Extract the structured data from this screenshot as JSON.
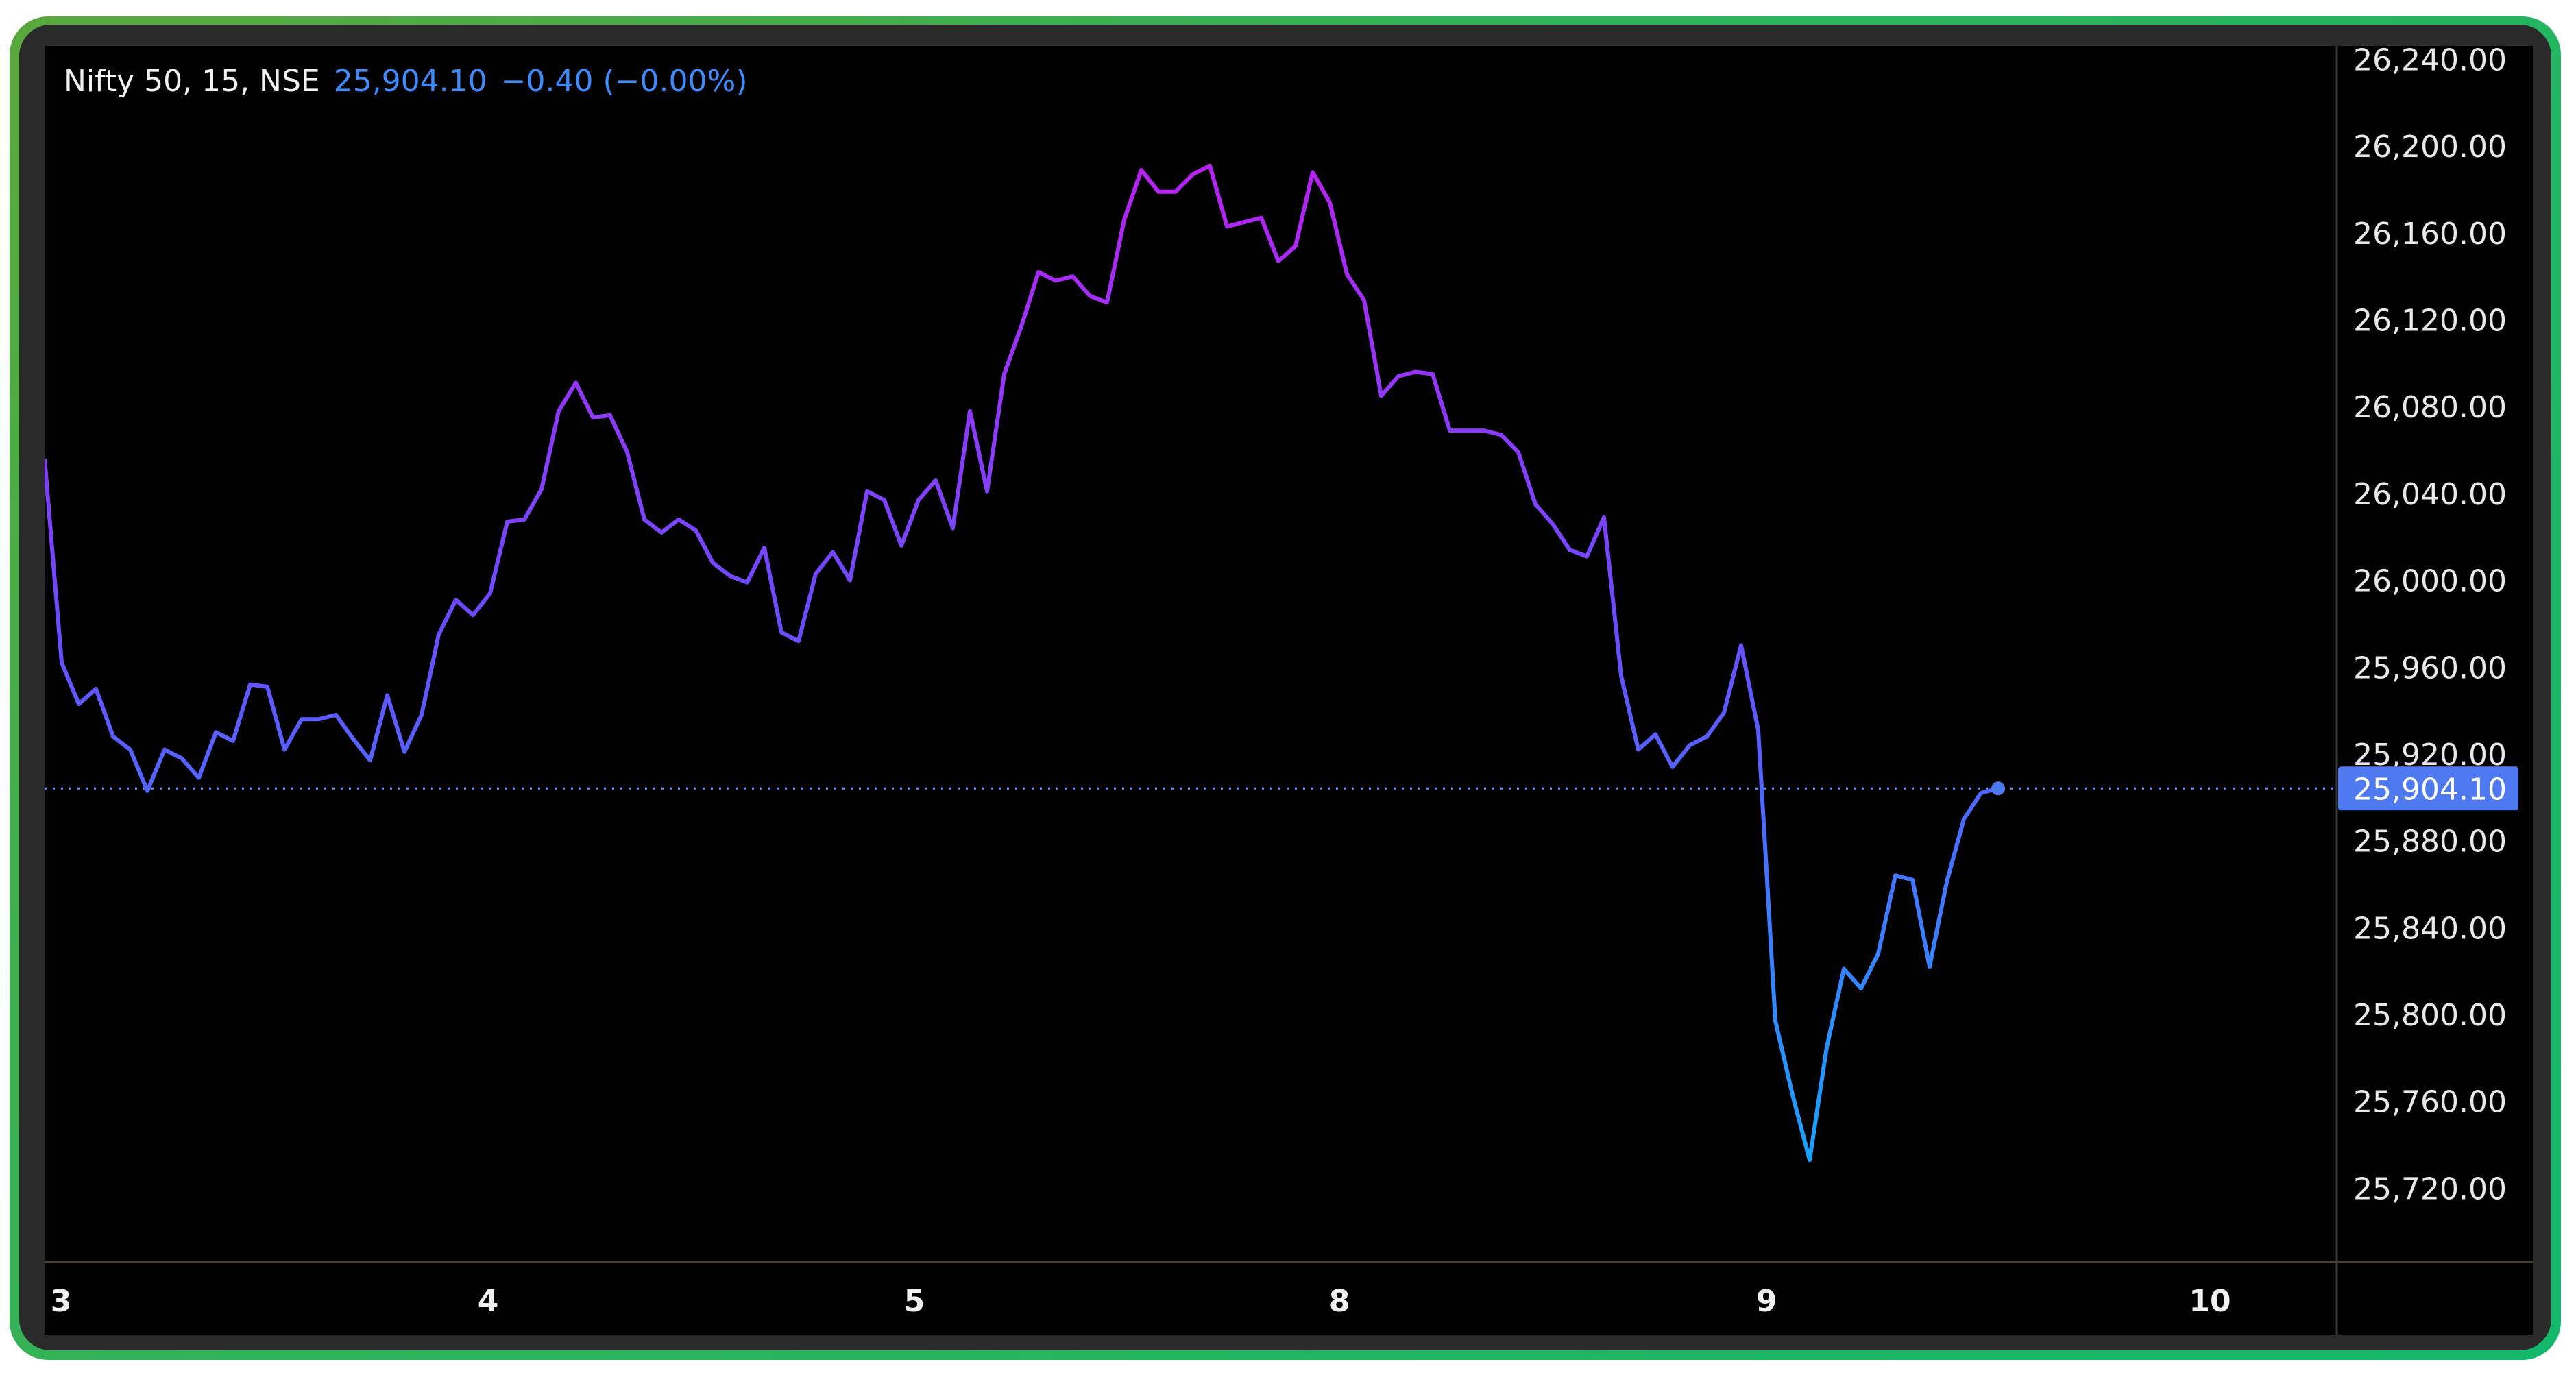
{
  "header": {
    "symbol": "Nifty 50, 15, NSE",
    "last": "25,904.10",
    "change": "−0.40 (−0.00%)"
  },
  "colors": {
    "line_high": "#c21cf2",
    "line_mid": "#6a4cff",
    "line_low": "#1aa0ff",
    "last_price_badge": "#4f79f0",
    "header_value": "#3b8cff",
    "frame_border": "#1dbb6b"
  },
  "chart_data": {
    "type": "line",
    "title": "Nifty 50, 15, NSE",
    "xlabel": "",
    "ylabel": "",
    "ylim": [
      25700,
      26250
    ],
    "grid": false,
    "y_ticks": [
      "26,240.00",
      "26,200.00",
      "26,160.00",
      "26,120.00",
      "26,080.00",
      "26,040.00",
      "26,000.00",
      "25,960.00",
      "25,920.00",
      "25,880.00",
      "25,840.00",
      "25,800.00",
      "25,760.00",
      "25,720.00"
    ],
    "y_tick_values": [
      26240,
      26200,
      26160,
      26120,
      26080,
      26040,
      26000,
      25960,
      25920,
      25880,
      25840,
      25800,
      25760,
      25720
    ],
    "x_ticks": [
      "3",
      "4",
      "5",
      "8",
      "9",
      "10"
    ],
    "last_price_label": "25,904.10",
    "last_price": 25904.1,
    "values": [
      26056,
      25962,
      25943,
      25950,
      25928,
      25922,
      25903,
      25922,
      25918,
      25909,
      25930,
      25926,
      25952,
      25951,
      25922,
      25936,
      25936,
      25938,
      25927,
      25917,
      25947,
      25921,
      25938,
      25975,
      25991,
      25984,
      25994,
      26027,
      26028,
      26042,
      26078,
      26091,
      26075,
      26076,
      26059,
      26028,
      26022,
      26028,
      26023,
      26008,
      26002,
      25999,
      26015,
      25976,
      25972,
      26003,
      26013,
      26000,
      26041,
      26037,
      26016,
      26037,
      26046,
      26024,
      26078,
      26041,
      26095,
      26117,
      26142,
      26138,
      26140,
      26131,
      26128,
      26166,
      26189,
      26179,
      26179,
      26187,
      26191,
      26163,
      26165,
      26167,
      26147,
      26154,
      26188,
      26174,
      26141,
      26129,
      26085,
      26094,
      26096,
      26095,
      26069,
      26069,
      26069,
      26067,
      26059,
      26035,
      26026,
      26014,
      26011,
      26029,
      25956,
      25922,
      25929,
      25914,
      25924,
      25928,
      25939,
      25970,
      25931,
      25797,
      25763,
      25733,
      25785,
      25821,
      25812,
      25828,
      25864,
      25862,
      25822,
      25861,
      25890,
      25902,
      25904.1
    ]
  }
}
